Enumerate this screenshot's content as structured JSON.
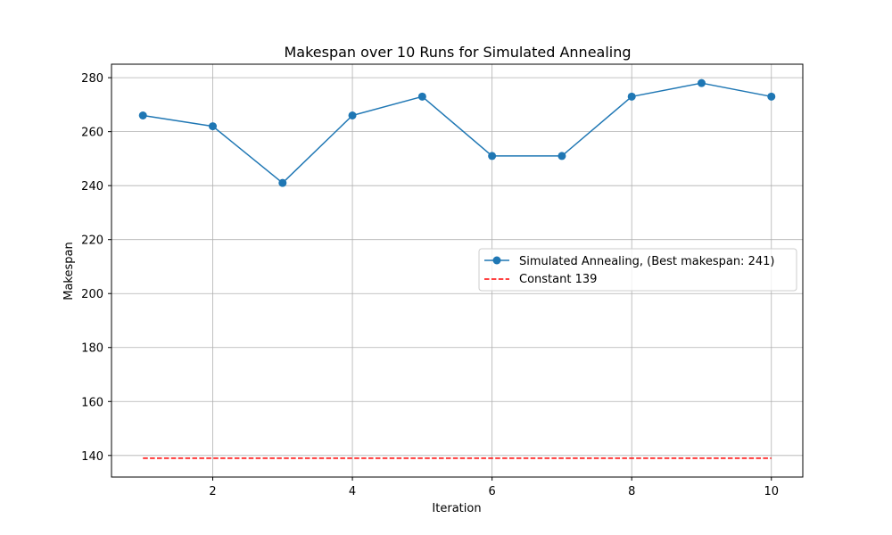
{
  "chart_data": {
    "type": "line",
    "title": "Makespan over 10 Runs for Simulated Annealing",
    "xlabel": "Iteration",
    "ylabel": "Makespan",
    "x": [
      1,
      2,
      3,
      4,
      5,
      6,
      7,
      8,
      9,
      10
    ],
    "xlim": [
      0.55,
      10.45
    ],
    "ylim": [
      132,
      285
    ],
    "xticks": [
      2,
      4,
      6,
      8,
      10
    ],
    "yticks": [
      140,
      160,
      180,
      200,
      220,
      240,
      260,
      280
    ],
    "grid": true,
    "legend_position": "center-right",
    "series": [
      {
        "name": "Simulated Annealing, (Best makespan: 241)",
        "values": [
          266,
          262,
          241,
          266,
          273,
          251,
          251,
          273,
          278,
          273
        ],
        "color": "#1f77b4",
        "line_style": "solid",
        "marker": "circle"
      },
      {
        "name": "Constant 139",
        "values": [
          139,
          139,
          139,
          139,
          139,
          139,
          139,
          139,
          139,
          139
        ],
        "color": "#ff0000",
        "line_style": "dashed",
        "marker": "none"
      }
    ]
  }
}
